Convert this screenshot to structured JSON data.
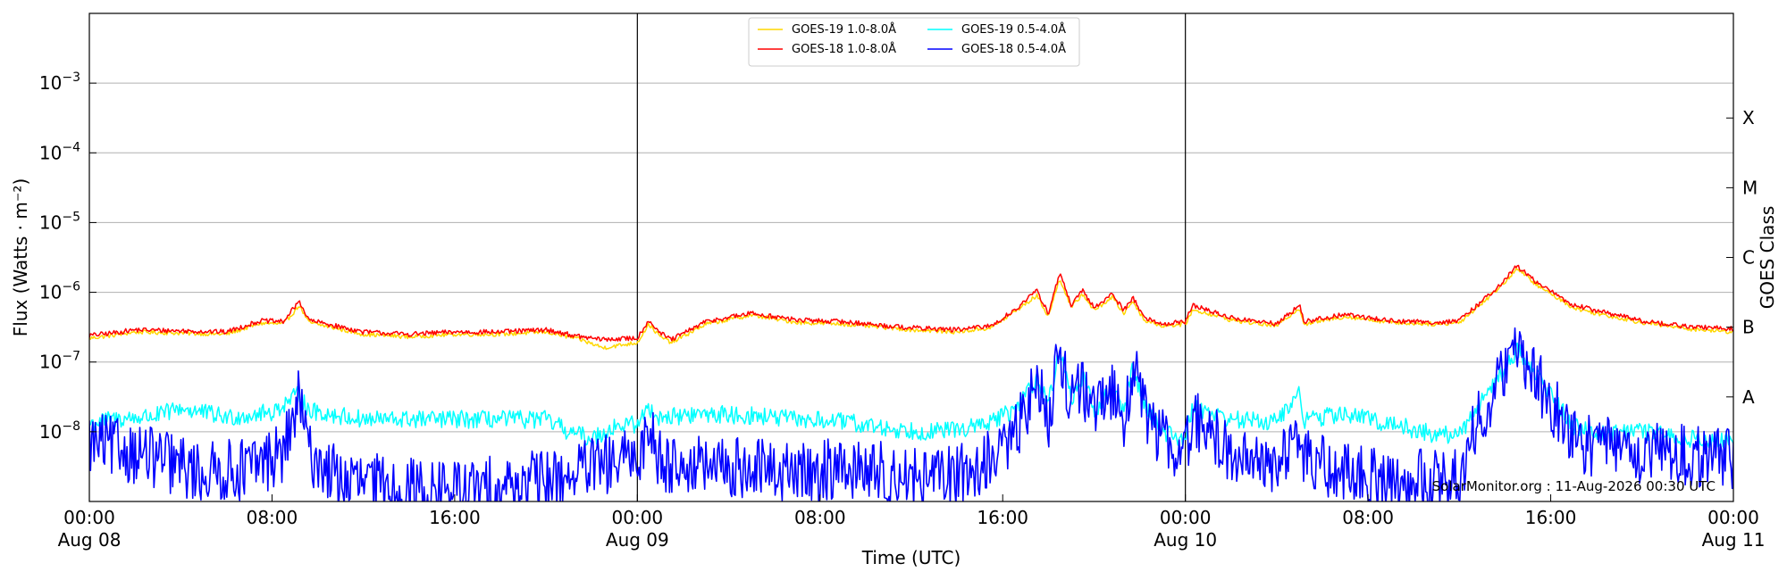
{
  "chart_data": {
    "type": "line",
    "xlabel": "Time (UTC)",
    "ylabel": "Flux (Watts · m⁻²)",
    "right_axis_label": "GOES Class",
    "ylim": [
      1e-09,
      0.01
    ],
    "yscale": "log",
    "x_range": [
      "2026-08-08T00:00",
      "2026-08-11T00:00"
    ],
    "x_ticks": [
      {
        "t": 0,
        "line1": "00:00",
        "line2": "Aug 08"
      },
      {
        "t": 8,
        "line1": "08:00",
        "line2": ""
      },
      {
        "t": 16,
        "line1": "16:00",
        "line2": ""
      },
      {
        "t": 24,
        "line1": "00:00",
        "line2": "Aug 09"
      },
      {
        "t": 32,
        "line1": "08:00",
        "line2": ""
      },
      {
        "t": 40,
        "line1": "16:00",
        "line2": ""
      },
      {
        "t": 48,
        "line1": "00:00",
        "line2": "Aug 10"
      },
      {
        "t": 56,
        "line1": "08:00",
        "line2": ""
      },
      {
        "t": 64,
        "line1": "16:00",
        "line2": ""
      },
      {
        "t": 72,
        "line1": "00:00",
        "line2": "Aug 11"
      }
    ],
    "y_ticks": [
      {
        "value": 1e-08,
        "base": "10",
        "exp": "−8"
      },
      {
        "value": 1e-07,
        "base": "10",
        "exp": "−7"
      },
      {
        "value": 1e-06,
        "base": "10",
        "exp": "−6"
      },
      {
        "value": 1e-05,
        "base": "10",
        "exp": "−5"
      },
      {
        "value": 0.0001,
        "base": "10",
        "exp": "−4"
      },
      {
        "value": 0.001,
        "base": "10",
        "exp": "−3"
      }
    ],
    "goes_classes": [
      {
        "label": "A",
        "value": 3.16e-08
      },
      {
        "label": "B",
        "value": 3.16e-07
      },
      {
        "label": "C",
        "value": 3.16e-06
      },
      {
        "label": "M",
        "value": 3.16e-05
      },
      {
        "label": "X",
        "value": 0.000316
      }
    ],
    "day_boundaries": [
      24,
      48
    ],
    "grid": "horizontal",
    "legend": "top-center",
    "credit": "SolarMonitor.org : 11-Aug-2026 00:30 UTC",
    "series": [
      {
        "name": "GOES-19 1.0-8.0Å",
        "color": "#ffd700",
        "noise": 0.03,
        "points": [
          [
            0,
            2.2e-07
          ],
          [
            1,
            2.4e-07
          ],
          [
            2,
            2.7e-07
          ],
          [
            4,
            2.6e-07
          ],
          [
            6,
            2.5e-07
          ],
          [
            7.5,
            3.6e-07
          ],
          [
            8.5,
            3.5e-07
          ],
          [
            9.2,
            6.5e-07
          ],
          [
            9.6,
            3.7e-07
          ],
          [
            12,
            2.5e-07
          ],
          [
            14,
            2.3e-07
          ],
          [
            16,
            2.5e-07
          ],
          [
            18,
            2.5e-07
          ],
          [
            20,
            2.7e-07
          ],
          [
            21.5,
            2.1e-07
          ],
          [
            22.5,
            1.6e-07
          ],
          [
            24,
            1.9e-07
          ],
          [
            24.5,
            3.5e-07
          ],
          [
            25,
            2.3e-07
          ],
          [
            25.5,
            1.9e-07
          ],
          [
            27,
            3.5e-07
          ],
          [
            29,
            4.7e-07
          ],
          [
            31,
            3.7e-07
          ],
          [
            33,
            3.5e-07
          ],
          [
            34.5,
            3.2e-07
          ],
          [
            36,
            2.9e-07
          ],
          [
            38,
            2.7e-07
          ],
          [
            39.5,
            3.1e-07
          ],
          [
            40.5,
            5.2e-07
          ],
          [
            41.5,
            9e-07
          ],
          [
            42,
            4.5e-07
          ],
          [
            42.5,
            1.6e-06
          ],
          [
            43,
            6e-07
          ],
          [
            43.5,
            9.5e-07
          ],
          [
            44,
            5.5e-07
          ],
          [
            44.8,
            8.5e-07
          ],
          [
            45.3,
            5e-07
          ],
          [
            45.7,
            7.5e-07
          ],
          [
            46.2,
            4e-07
          ],
          [
            47,
            3.3e-07
          ],
          [
            48,
            3.5e-07
          ],
          [
            48.3,
            5.5e-07
          ],
          [
            49,
            5e-07
          ],
          [
            50,
            4e-07
          ],
          [
            52,
            3.3e-07
          ],
          [
            53,
            6e-07
          ],
          [
            53.2,
            3.5e-07
          ],
          [
            55,
            4.5e-07
          ],
          [
            57,
            3.7e-07
          ],
          [
            59,
            3.5e-07
          ],
          [
            60,
            3.7e-07
          ],
          [
            61,
            7e-07
          ],
          [
            62,
            1.4e-06
          ],
          [
            62.5,
            2.2e-06
          ],
          [
            63.5,
            1.2e-06
          ],
          [
            65,
            6e-07
          ],
          [
            66,
            5e-07
          ],
          [
            68,
            3.7e-07
          ],
          [
            70,
            3e-07
          ],
          [
            72,
            2.7e-07
          ]
        ]
      },
      {
        "name": "GOES-18 1.0-8.0Å",
        "color": "#ff0000",
        "noise": 0.035,
        "points": [
          [
            0,
            2.4e-07
          ],
          [
            1,
            2.6e-07
          ],
          [
            2,
            2.9e-07
          ],
          [
            4,
            2.8e-07
          ],
          [
            6,
            2.7e-07
          ],
          [
            7.5,
            3.9e-07
          ],
          [
            8.5,
            3.8e-07
          ],
          [
            9.2,
            7.5e-07
          ],
          [
            9.6,
            4e-07
          ],
          [
            12,
            2.7e-07
          ],
          [
            14,
            2.5e-07
          ],
          [
            16,
            2.7e-07
          ],
          [
            18,
            2.7e-07
          ],
          [
            20,
            2.9e-07
          ],
          [
            21.5,
            2.3e-07
          ],
          [
            22.5,
            2.1e-07
          ],
          [
            24,
            2.2e-07
          ],
          [
            24.5,
            4e-07
          ],
          [
            25,
            2.6e-07
          ],
          [
            25.5,
            2.1e-07
          ],
          [
            27,
            3.8e-07
          ],
          [
            29,
            5e-07
          ],
          [
            31,
            4e-07
          ],
          [
            33,
            3.8e-07
          ],
          [
            34.5,
            3.4e-07
          ],
          [
            36,
            3.1e-07
          ],
          [
            38,
            2.9e-07
          ],
          [
            39.5,
            3.3e-07
          ],
          [
            40.5,
            5.5e-07
          ],
          [
            41.5,
            1.05e-06
          ],
          [
            42,
            5e-07
          ],
          [
            42.5,
            1.9e-06
          ],
          [
            43,
            6.5e-07
          ],
          [
            43.5,
            1.05e-06
          ],
          [
            44,
            6e-07
          ],
          [
            44.8,
            9.5e-07
          ],
          [
            45.3,
            5.5e-07
          ],
          [
            45.7,
            8.5e-07
          ],
          [
            46.2,
            4.3e-07
          ],
          [
            47,
            3.5e-07
          ],
          [
            48,
            3.8e-07
          ],
          [
            48.3,
            6.5e-07
          ],
          [
            49,
            5.5e-07
          ],
          [
            50,
            4.3e-07
          ],
          [
            52,
            3.5e-07
          ],
          [
            53,
            6.5e-07
          ],
          [
            53.2,
            3.8e-07
          ],
          [
            55,
            4.8e-07
          ],
          [
            57,
            3.9e-07
          ],
          [
            59,
            3.7e-07
          ],
          [
            60,
            3.9e-07
          ],
          [
            61,
            7.5e-07
          ],
          [
            62,
            1.5e-06
          ],
          [
            62.5,
            2.4e-06
          ],
          [
            63.5,
            1.3e-06
          ],
          [
            65,
            6.5e-07
          ],
          [
            66,
            5.5e-07
          ],
          [
            68,
            3.9e-07
          ],
          [
            70,
            3.2e-07
          ],
          [
            72,
            3e-07
          ]
        ]
      },
      {
        "name": "GOES-19 0.5-4.0Å",
        "color": "#00ffff",
        "noise": 0.13,
        "points": [
          [
            0,
            1.3e-08
          ],
          [
            1,
            1.5e-08
          ],
          [
            3,
            1.7e-08
          ],
          [
            4,
            2.2e-08
          ],
          [
            6,
            1.6e-08
          ],
          [
            8,
            1.9e-08
          ],
          [
            9.2,
            3.5e-08
          ],
          [
            9.6,
            2e-08
          ],
          [
            12,
            1.5e-08
          ],
          [
            16,
            1.5e-08
          ],
          [
            20,
            1.5e-08
          ],
          [
            21,
            1e-08
          ],
          [
            22,
            8e-09
          ],
          [
            23,
            1.2e-08
          ],
          [
            24,
            1.3e-08
          ],
          [
            24.5,
            2.2e-08
          ],
          [
            25,
            1.6e-08
          ],
          [
            27,
            1.8e-08
          ],
          [
            29,
            1.7e-08
          ],
          [
            31,
            1.5e-08
          ],
          [
            33,
            1.4e-08
          ],
          [
            35,
            1.1e-08
          ],
          [
            37,
            1e-08
          ],
          [
            39,
            1.2e-08
          ],
          [
            40.5,
            2e-08
          ],
          [
            41.5,
            6e-08
          ],
          [
            42,
            2.5e-08
          ],
          [
            42.5,
            1.5e-07
          ],
          [
            43,
            3e-08
          ],
          [
            43.5,
            6e-08
          ],
          [
            44,
            2e-08
          ],
          [
            44.8,
            4e-08
          ],
          [
            45.3,
            2e-08
          ],
          [
            45.7,
            8.5e-08
          ],
          [
            46.2,
            2.5e-08
          ],
          [
            47,
            1e-08
          ],
          [
            48,
            8e-09
          ],
          [
            48.3,
            2.2e-08
          ],
          [
            49,
            2e-08
          ],
          [
            50,
            1.5e-08
          ],
          [
            52,
            1.4e-08
          ],
          [
            53,
            3.5e-08
          ],
          [
            53.2,
            1.5e-08
          ],
          [
            55,
            1.8e-08
          ],
          [
            57,
            1.3e-08
          ],
          [
            59,
            9e-09
          ],
          [
            60,
            9e-09
          ],
          [
            61,
            3e-08
          ],
          [
            62,
            8e-08
          ],
          [
            62.5,
            1.5e-07
          ],
          [
            63.5,
            6e-08
          ],
          [
            65,
            1.2e-08
          ],
          [
            66,
            1e-08
          ],
          [
            68,
            1e-08
          ],
          [
            70,
            8e-09
          ],
          [
            72,
            7e-09
          ]
        ]
      },
      {
        "name": "GOES-18 0.5-4.0Å",
        "color": "#0000ff",
        "noise": 0.45,
        "points": [
          [
            0,
            7e-09
          ],
          [
            1,
            6e-09
          ],
          [
            2,
            5e-09
          ],
          [
            3,
            4e-09
          ],
          [
            5,
            2.5e-09
          ],
          [
            7,
            3e-09
          ],
          [
            8.5,
            5e-09
          ],
          [
            9.2,
            3e-08
          ],
          [
            9.6,
            5e-09
          ],
          [
            11,
            2e-09
          ],
          [
            14,
            1.5e-09
          ],
          [
            17,
            1.5e-09
          ],
          [
            20,
            2e-09
          ],
          [
            22,
            3e-09
          ],
          [
            24,
            4e-09
          ],
          [
            24.5,
            1.2e-08
          ],
          [
            25,
            4e-09
          ],
          [
            27,
            3e-09
          ],
          [
            29,
            3e-09
          ],
          [
            31,
            2.5e-09
          ],
          [
            33,
            3e-09
          ],
          [
            35,
            2.5e-09
          ],
          [
            37,
            2e-09
          ],
          [
            39,
            3e-09
          ],
          [
            40.5,
            8e-09
          ],
          [
            41.5,
            5e-08
          ],
          [
            42,
            1.5e-08
          ],
          [
            42.5,
            1.7e-07
          ],
          [
            43,
            2.5e-08
          ],
          [
            43.5,
            5e-08
          ],
          [
            44,
            1.5e-08
          ],
          [
            44.8,
            4e-08
          ],
          [
            45.3,
            1.5e-08
          ],
          [
            45.7,
            9e-08
          ],
          [
            46.2,
            2e-08
          ],
          [
            47,
            8e-09
          ],
          [
            48,
            5e-09
          ],
          [
            48.3,
            1.5e-08
          ],
          [
            49,
            1e-08
          ],
          [
            50,
            5e-09
          ],
          [
            52,
            3e-09
          ],
          [
            53,
            1.2e-08
          ],
          [
            53.2,
            4e-09
          ],
          [
            55,
            2.5e-09
          ],
          [
            57,
            2e-09
          ],
          [
            59,
            2e-09
          ],
          [
            60,
            2.5e-09
          ],
          [
            61,
            2e-08
          ],
          [
            62,
            7e-08
          ],
          [
            62.5,
            1.6e-07
          ],
          [
            63.5,
            5e-08
          ],
          [
            65,
            8e-09
          ],
          [
            66,
            6e-09
          ],
          [
            68,
            5e-09
          ],
          [
            70,
            4.5e-09
          ],
          [
            72,
            4e-09
          ]
        ]
      }
    ]
  }
}
